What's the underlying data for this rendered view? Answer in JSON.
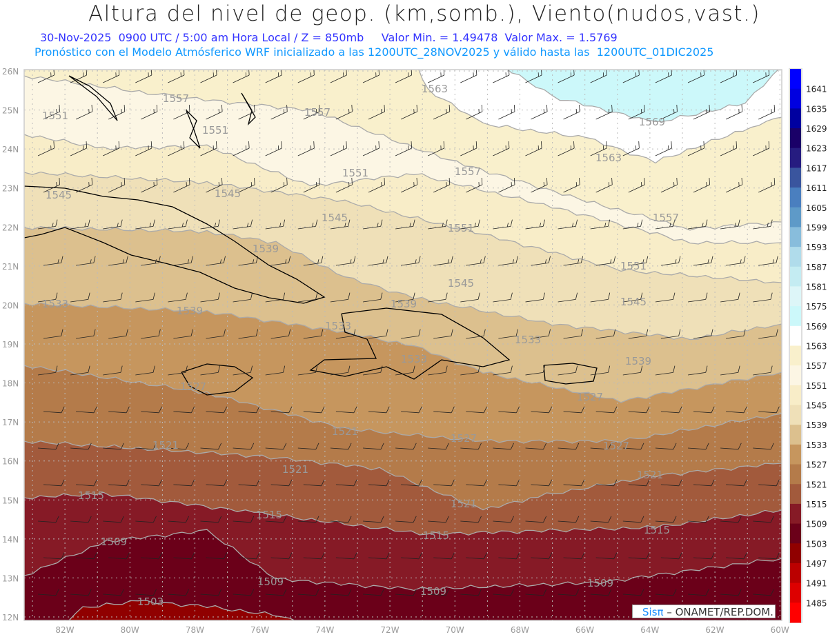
{
  "header": {
    "title": "Altura del nivel de geop. (km,somb.), Viento(nudos,vast.)",
    "subtitle_line1": "30-Nov-2025  0900 UTC / 5:00 am Hora Local / Z = 850mb     Valor Min. = 1.49478  Valor Max. = 1.5769",
    "subtitle_line2": "Pronóstico con el Modelo Atmósferico WRF inicializado a las 1200UTC_28NOV2025 y válido hasta las  1200UTC_01DIC2025"
  },
  "axes": {
    "lat_labels": [
      "26N",
      "25N",
      "24N",
      "23N",
      "22N",
      "21N",
      "20N",
      "19N",
      "18N",
      "17N",
      "16N",
      "15N",
      "14N",
      "13N",
      "12N"
    ],
    "lon_labels": [
      "82W",
      "80W",
      "78W",
      "76W",
      "74W",
      "72W",
      "70W",
      "68W",
      "66W",
      "64W",
      "62W",
      "60W"
    ]
  },
  "colorbar": {
    "labels": [
      "1641",
      "1635",
      "1629",
      "1623",
      "1617",
      "1611",
      "1605",
      "1599",
      "1593",
      "1587",
      "1581",
      "1575",
      "1569",
      "1563",
      "1557",
      "1551",
      "1545",
      "1539",
      "1533",
      "1527",
      "1521",
      "1515",
      "1509",
      "1503",
      "1497",
      "1491",
      "1485"
    ],
    "colors": [
      "#0000ff",
      "#0000e0",
      "#0000a0",
      "#1a0068",
      "#261c80",
      "#3a559e",
      "#4a7fbf",
      "#5e9ac8",
      "#88bddc",
      "#b0dceb",
      "#c4ecf2",
      "#ddf6f8",
      "#ccf8fa",
      "#ffffff",
      "#f9f0cc",
      "#fcf6e4",
      "#f8edc8",
      "#efe0b8",
      "#dcc08e",
      "#c6965e",
      "#b47b4a",
      "#a25a3c",
      "#861a26",
      "#6b0019",
      "#900000",
      "#bb0000",
      "#dd0000",
      "#ff0000"
    ]
  },
  "contour_labels": [
    "1557",
    "1551",
    "1557",
    "1551",
    "1563",
    "1569",
    "1563",
    "1557",
    "1545",
    "1545",
    "1551",
    "1557",
    "1545",
    "1551",
    "1539",
    "1545",
    "1551",
    "1533",
    "1539",
    "1545",
    "1533",
    "1539",
    "1533",
    "1539",
    "1527",
    "1533",
    "1527",
    "1521",
    "1527",
    "1527",
    "1521",
    "1521",
    "1521",
    "1521",
    "1515",
    "1515",
    "1515",
    "1515",
    "1509",
    "1509",
    "1509",
    "1509",
    "1503"
  ],
  "credit": {
    "brand": "Sisπ",
    "text": " – ONAMET/REP.DOM."
  }
}
